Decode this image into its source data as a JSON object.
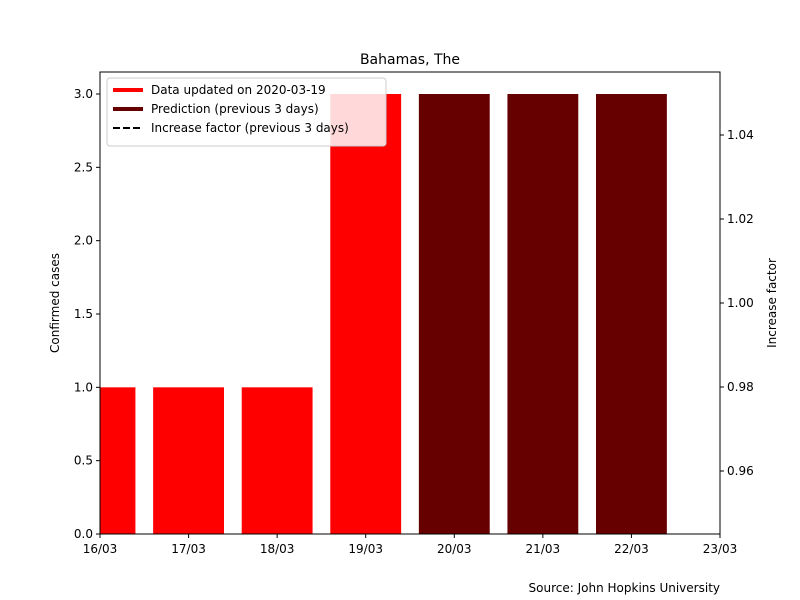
{
  "chart_data": {
    "type": "bar",
    "title": "Bahamas, The",
    "xlabel": "",
    "ylabel": "Confirmed cases",
    "y2label": "Increase factor",
    "x_tick_labels": [
      "16/03",
      "17/03",
      "18/03",
      "19/03",
      "20/03",
      "21/03",
      "22/03",
      "23/03"
    ],
    "xlim": [
      0,
      7
    ],
    "ylim": [
      0,
      3.15
    ],
    "y2lim": [
      0.945,
      1.055
    ],
    "y_ticks": [
      "0.0",
      "0.5",
      "1.0",
      "1.5",
      "2.0",
      "2.5",
      "3.0"
    ],
    "y2_ticks": [
      "0.96",
      "0.98",
      "1.00",
      "1.02",
      "1.04"
    ],
    "legend_position": "top-left",
    "series": [
      {
        "name": "Data updated on 2020-03-19",
        "color": "#ff0000",
        "points": [
          {
            "x": 0,
            "y": 1
          },
          {
            "x": 1,
            "y": 1
          },
          {
            "x": 2,
            "y": 1
          },
          {
            "x": 3,
            "y": 3
          }
        ]
      },
      {
        "name": "Prediction (previous 3 days)",
        "color": "#660000",
        "points": [
          {
            "x": 4,
            "y": 3
          },
          {
            "x": 5,
            "y": 3
          },
          {
            "x": 6,
            "y": 3
          }
        ]
      },
      {
        "name": "Increase factor (previous 3 days)",
        "color": "#000000",
        "style": "dashed",
        "points": []
      }
    ],
    "source_note": "Source: John Hopkins University"
  }
}
